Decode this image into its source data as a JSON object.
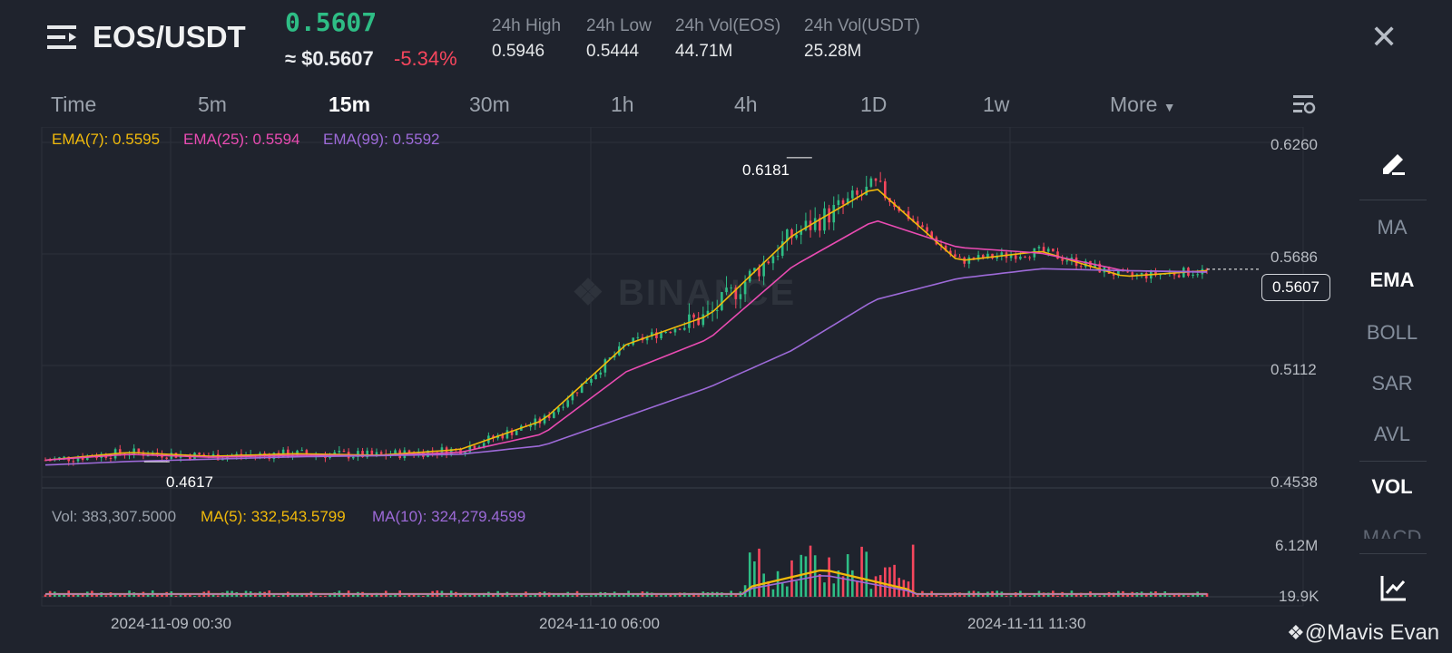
{
  "header": {
    "pair": "EOS/USDT",
    "last_price": "0.5607",
    "usd_price": "≈ $0.5607",
    "change": "-5.34%",
    "stats": [
      {
        "label": "24h High",
        "value": "0.5946"
      },
      {
        "label": "24h Low",
        "value": "0.5444"
      },
      {
        "label": "24h Vol(EOS)",
        "value": "44.71M"
      },
      {
        "label": "24h Vol(USDT)",
        "value": "25.28M"
      }
    ],
    "close_icon": "close-icon",
    "menu_icon": "menu-icon"
  },
  "timeframes": {
    "items": [
      "Time",
      "5m",
      "15m",
      "30m",
      "1h",
      "4h",
      "1D",
      "1w",
      "More"
    ],
    "active": "15m",
    "settings_icon": "chart-settings-icon"
  },
  "indicators": {
    "ema7": "EMA(7): 0.5595",
    "ema25": "EMA(25): 0.5594",
    "ema99": "EMA(99): 0.5592",
    "vol": "Vol: 383,307.5000",
    "ma5": "MA(5): 332,543.5799",
    "ma10": "MA(10): 324,279.4599"
  },
  "price_axis": [
    "0.6260",
    "0.5686",
    "0.5112",
    "0.4538"
  ],
  "volume_axis": [
    "6.12M",
    "19.9K"
  ],
  "time_axis": [
    "2024-11-09 00:30",
    "2024-11-10 06:00",
    "2024-11-11 11:30"
  ],
  "annotations": {
    "high": "0.6181",
    "low": "0.4617",
    "current": "0.5607"
  },
  "watermark": "BINANCE",
  "sidebar": {
    "draw_icon": "pencil-icon",
    "items": [
      "MA",
      "EMA",
      "BOLL",
      "SAR",
      "AVL",
      "VOL",
      "MACD"
    ],
    "active": [
      "EMA",
      "VOL"
    ],
    "bottom_icon": "chart-type-icon"
  },
  "credit": "@Mavis Evan",
  "colors": {
    "up": "#2ebd85",
    "down": "#f6465d",
    "ema7": "#f0b90b",
    "ema25": "#e94bb2",
    "ema99": "#9d6ad8",
    "bg": "#1f232d"
  },
  "chart_data": {
    "type": "candlestick",
    "ylim": [
      0.4538,
      0.626
    ],
    "x": [
      "2024-11-09 00:30",
      "2024-11-09 06:00",
      "2024-11-09 12:00",
      "2024-11-09 18:00",
      "2024-11-10 00:00",
      "2024-11-10 06:00",
      "2024-11-10 09:00",
      "2024-11-10 12:00",
      "2024-11-10 15:00",
      "2024-11-10 18:00",
      "2024-11-11 00:00",
      "2024-11-11 06:00",
      "2024-11-11 11:30",
      "2024-11-11 16:00",
      "2024-11-11 20:00"
    ],
    "series": [
      {
        "name": "EMA(7)",
        "values": [
          0.4625,
          0.4665,
          0.4645,
          0.4658,
          0.465,
          0.468,
          0.483,
          0.522,
          0.537,
          0.578,
          0.603,
          0.565,
          0.57,
          0.557,
          0.56
        ]
      },
      {
        "name": "EMA(25)",
        "values": [
          0.4625,
          0.4655,
          0.464,
          0.465,
          0.4648,
          0.4665,
          0.476,
          0.508,
          0.525,
          0.562,
          0.586,
          0.572,
          0.569,
          0.56,
          0.5594
        ]
      },
      {
        "name": "EMA(99)",
        "values": [
          0.46,
          0.4618,
          0.463,
          0.4642,
          0.4648,
          0.4655,
          0.47,
          0.485,
          0.5,
          0.519,
          0.545,
          0.556,
          0.561,
          0.56,
          0.5592
        ]
      }
    ],
    "high": 0.6181,
    "low": 0.4617,
    "current": 0.5607
  }
}
